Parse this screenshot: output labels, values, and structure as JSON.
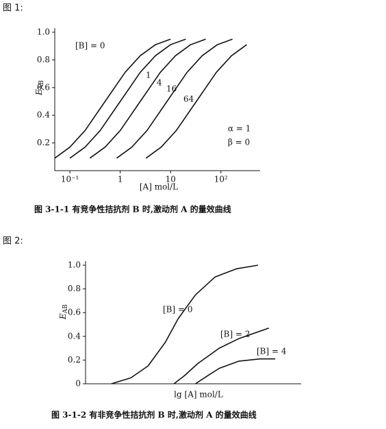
{
  "figure_labels": [
    "图 1:",
    "图 2:"
  ],
  "chart_data": [
    {
      "type": "line",
      "title": "图 3-1-1   有竞争性拮抗剂 B 时,激动剂 A 的量效曲线",
      "x_label": "[A] mol/L",
      "y_label": "E",
      "y_label_sub": "AB",
      "xscale": "log",
      "xlim": [
        0.05,
        600
      ],
      "ylim": [
        0,
        1
      ],
      "xticks": [
        {
          "value": 0.1,
          "label": "10⁻¹"
        },
        1,
        10,
        {
          "value": 100,
          "label": "10²"
        }
      ],
      "yticks": [
        0.2,
        0.4,
        0.6,
        {
          "value": 0.8,
          "label": "0.8"
        },
        {
          "value": 1,
          "label": "1.0"
        }
      ],
      "annotations": [
        "α = 1",
        "β = 0"
      ],
      "series": [
        {
          "name": "[B] = 0",
          "color": "#111",
          "x": [
            0.05,
            0.1,
            0.2,
            0.5,
            1.25,
            2.5,
            5,
            10
          ],
          "values": [
            0.09,
            0.17,
            0.29,
            0.5,
            0.71,
            0.83,
            0.91,
            0.95
          ]
        },
        {
          "name": "1",
          "color": "#111",
          "x": [
            0.1,
            0.2,
            0.4,
            1,
            2.5,
            5,
            10,
            20
          ],
          "values": [
            0.09,
            0.17,
            0.29,
            0.5,
            0.71,
            0.83,
            0.91,
            0.95
          ]
        },
        {
          "name": "4",
          "color": "#111",
          "x": [
            0.25,
            0.5,
            1,
            2.5,
            6.25,
            12.5,
            25,
            50
          ],
          "values": [
            0.09,
            0.17,
            0.29,
            0.5,
            0.71,
            0.83,
            0.91,
            0.95
          ]
        },
        {
          "name": "16",
          "color": "#111",
          "x": [
            0.85,
            1.7,
            3.4,
            8.5,
            21.25,
            42.5,
            85,
            170
          ],
          "values": [
            0.09,
            0.17,
            0.29,
            0.5,
            0.71,
            0.83,
            0.91,
            0.95
          ]
        },
        {
          "name": "64",
          "color": "#111",
          "x": [
            3.25,
            6.5,
            13,
            32.5,
            81.25,
            162.5,
            325
          ],
          "values": [
            0.09,
            0.17,
            0.29,
            0.5,
            0.71,
            0.83,
            0.91
          ]
        }
      ]
    },
    {
      "type": "line",
      "title": "图 3-1-2   有非竞争性拮抗剂 B 时,激动剂 A 的量效曲线",
      "x_label": "lg [A] mol/L",
      "y_label": "E",
      "y_label_sub": "AB",
      "xlim": [
        0,
        10
      ],
      "ylim": [
        0,
        1
      ],
      "yticks": [
        0,
        0.2,
        0.4,
        0.6,
        0.8,
        {
          "value": 1,
          "label": "1.0"
        }
      ],
      "series": [
        {
          "name": "[B] = 0",
          "color": "#111",
          "x": [
            1.2,
            2.1,
            2.9,
            3.7,
            4.3,
            5.1,
            6.0,
            7.0,
            8.0
          ],
          "values": [
            0,
            0.05,
            0.15,
            0.35,
            0.55,
            0.75,
            0.9,
            0.97,
            1.0
          ]
        },
        {
          "name": "[B] = 2",
          "color": "#111",
          "x": [
            4.1,
            4.6,
            5.2,
            6.2,
            7.1,
            8.5
          ],
          "values": [
            0,
            0.07,
            0.17,
            0.3,
            0.38,
            0.47
          ]
        },
        {
          "name": "[B] = 4",
          "color": "#111",
          "x": [
            5.1,
            5.6,
            6.2,
            7.1,
            8.1,
            8.8
          ],
          "values": [
            0,
            0.06,
            0.13,
            0.19,
            0.21,
            0.21
          ]
        }
      ]
    }
  ]
}
